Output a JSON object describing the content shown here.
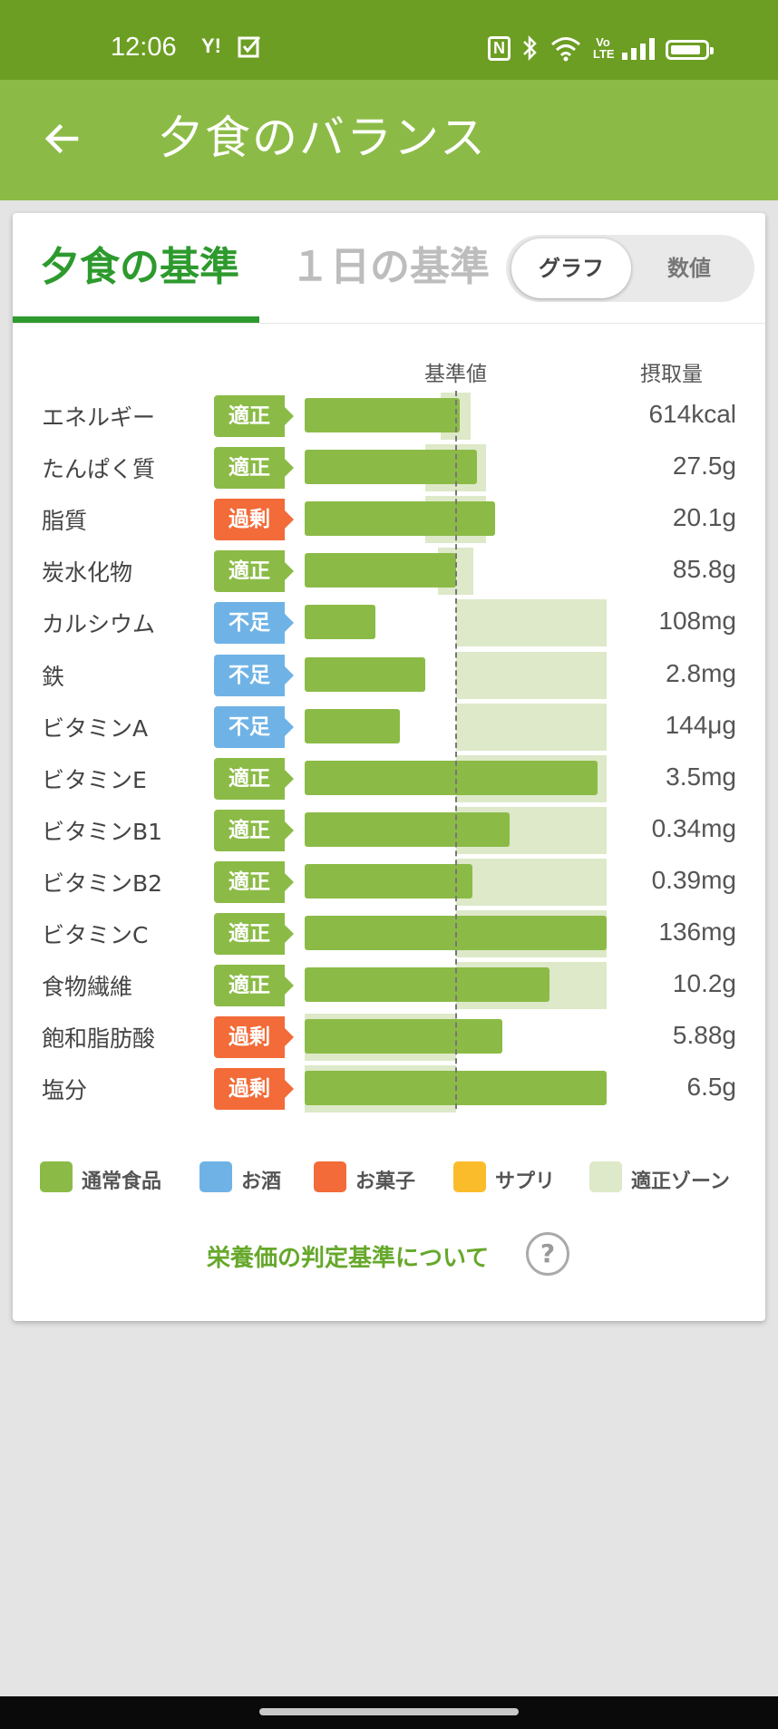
{
  "status_bar": {
    "time": "12:06",
    "icons": [
      "yahoo-icon",
      "check-box-icon",
      "nfc-icon",
      "bluetooth-icon",
      "wifi-icon",
      "volte-icon",
      "signal-icon",
      "battery-icon"
    ],
    "yahoo_text": "Y!",
    "nfc_text": "N",
    "volte_text": "Vo LTE"
  },
  "app_bar": {
    "title": "夕食のバランス",
    "back_icon": "arrow-back-icon",
    "background": "#8bbb46"
  },
  "tabs": [
    {
      "label": "夕食の基準",
      "active": true
    },
    {
      "label": "１日の基準",
      "active": false
    }
  ],
  "view_toggle": {
    "options": [
      "グラフ",
      "数値"
    ],
    "selected": "グラフ"
  },
  "chart_headers": {
    "reference": "基準値",
    "intake": "摂取量"
  },
  "colors": {
    "normal_food": "#8bbb46",
    "alcohol": "#6fb3e6",
    "snacks": "#f26b38",
    "supplement": "#fbbc2c",
    "appropriate_zone": "#dde9c9",
    "badge_ok": "#8bbb46",
    "badge_over": "#f26b38",
    "badge_under": "#6fb3e6",
    "accent_green": "#2d9a2d"
  },
  "chart_data": {
    "type": "bar",
    "orientation": "horizontal",
    "reference_marker": "基準値",
    "rows": [
      {
        "name": "エネルギー",
        "status": "適正",
        "status_type": "ok",
        "value": "614kcal",
        "ratio": 1.03,
        "zone": [
          0.9,
          1.1
        ]
      },
      {
        "name": "たんぱく質",
        "status": "適正",
        "status_type": "ok",
        "value": "27.5g",
        "ratio": 1.14,
        "zone": [
          0.8,
          1.2
        ]
      },
      {
        "name": "脂質",
        "status": "過剰",
        "status_type": "over",
        "value": "20.1g",
        "ratio": 1.26,
        "zone": [
          0.8,
          1.2
        ]
      },
      {
        "name": "炭水化物",
        "status": "適正",
        "status_type": "ok",
        "value": "85.8g",
        "ratio": 1.0,
        "zone": [
          0.88,
          1.12
        ]
      },
      {
        "name": "カルシウム",
        "status": "不足",
        "status_type": "under",
        "value": "108mg",
        "ratio": 0.47,
        "zone": [
          1.0,
          2.0
        ]
      },
      {
        "name": "鉄",
        "status": "不足",
        "status_type": "under",
        "value": "2.8mg",
        "ratio": 0.8,
        "zone": [
          1.0,
          2.0
        ]
      },
      {
        "name": "ビタミンA",
        "status": "不足",
        "status_type": "under",
        "value": "144μg",
        "ratio": 0.63,
        "zone": [
          1.0,
          2.0
        ]
      },
      {
        "name": "ビタミンE",
        "status": "適正",
        "status_type": "ok",
        "value": "3.5mg",
        "ratio": 1.94,
        "zone": [
          1.0,
          2.0
        ]
      },
      {
        "name": "ビタミンB1",
        "status": "適正",
        "status_type": "ok",
        "value": "0.34mg",
        "ratio": 1.36,
        "zone": [
          1.0,
          2.0
        ]
      },
      {
        "name": "ビタミンB2",
        "status": "適正",
        "status_type": "ok",
        "value": "0.39mg",
        "ratio": 1.11,
        "zone": [
          1.0,
          2.0
        ]
      },
      {
        "name": "ビタミンC",
        "status": "適正",
        "status_type": "ok",
        "value": "136mg",
        "ratio": 2.0,
        "zone": [
          1.0,
          2.0
        ]
      },
      {
        "name": "食物繊維",
        "status": "適正",
        "status_type": "ok",
        "value": "10.2g",
        "ratio": 1.62,
        "zone": [
          1.0,
          2.0
        ]
      },
      {
        "name": "飽和脂肪酸",
        "status": "過剰",
        "status_type": "over",
        "value": "5.88g",
        "ratio": 1.31,
        "zone": [
          0.0,
          1.0
        ]
      },
      {
        "name": "塩分",
        "status": "過剰",
        "status_type": "over",
        "value": "6.5g",
        "ratio": 2.0,
        "zone": [
          0.0,
          1.0
        ]
      }
    ],
    "legend": [
      {
        "label": "通常食品",
        "color": "#8bbb46"
      },
      {
        "label": "お酒",
        "color": "#6fb3e6"
      },
      {
        "label": "お菓子",
        "color": "#f26b38"
      },
      {
        "label": "サプリ",
        "color": "#fbbc2c"
      },
      {
        "label": "適正ゾーン",
        "color": "#dde9c9"
      }
    ]
  },
  "footer_link": {
    "label": "栄養価の判定基準について",
    "icon": "help-circle-icon",
    "icon_text": "?"
  }
}
